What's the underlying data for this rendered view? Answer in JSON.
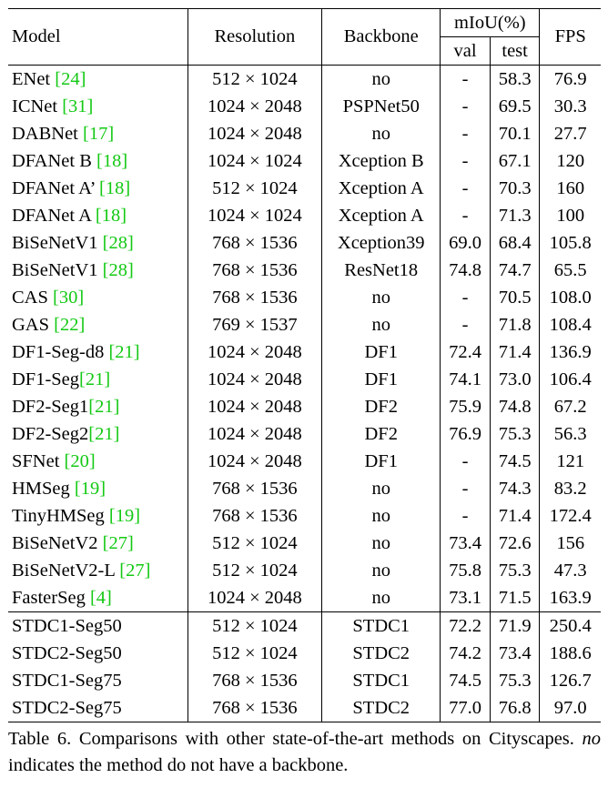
{
  "headers": {
    "model": "Model",
    "resolution": "Resolution",
    "backbone": "Backbone",
    "miou": "mIoU(%)",
    "val": "val",
    "test": "test",
    "fps": "FPS"
  },
  "rows_group1": [
    {
      "name": "ENet ",
      "ref": "[24]",
      "res": "512 × 1024",
      "backbone": "no",
      "val": "-",
      "test": "58.3",
      "fps": "76.9"
    },
    {
      "name": "ICNet ",
      "ref": "[31]",
      "res": "1024 × 2048",
      "backbone": "PSPNet50",
      "val": "-",
      "test": "69.5",
      "fps": "30.3"
    },
    {
      "name": "DABNet ",
      "ref": "[17]",
      "res": "1024 × 2048",
      "backbone": "no",
      "val": "-",
      "test": "70.1",
      "fps": "27.7"
    },
    {
      "name": "DFANet B ",
      "ref": "[18]",
      "res": "1024 × 1024",
      "backbone": "Xception B",
      "val": "-",
      "test": "67.1",
      "fps": "120"
    },
    {
      "name": "DFANet A’ ",
      "ref": "[18]",
      "res": "512 × 1024",
      "backbone": "Xception A",
      "val": "-",
      "test": "70.3",
      "fps": "160"
    },
    {
      "name": "DFANet A ",
      "ref": "[18]",
      "res": "1024 × 1024",
      "backbone": "Xception A",
      "val": "-",
      "test": "71.3",
      "fps": "100"
    },
    {
      "name": "BiSeNetV1 ",
      "ref": "[28]",
      "res": "768 × 1536",
      "backbone": "Xception39",
      "val": "69.0",
      "test": "68.4",
      "fps": "105.8"
    },
    {
      "name": "BiSeNetV1 ",
      "ref": "[28]",
      "res": "768 × 1536",
      "backbone": "ResNet18",
      "val": "74.8",
      "test": "74.7",
      "fps": "65.5"
    },
    {
      "name": "CAS ",
      "ref": "[30]",
      "res": "768 × 1536",
      "backbone": "no",
      "val": "-",
      "test": "70.5",
      "fps": "108.0"
    },
    {
      "name": "GAS ",
      "ref": "[22]",
      "res": "769 × 1537",
      "backbone": "no",
      "val": "-",
      "test": "71.8",
      "fps": "108.4"
    },
    {
      "name": "DF1-Seg-d8 ",
      "ref": "[21]",
      "res": "1024 × 2048",
      "backbone": "DF1",
      "val": "72.4",
      "test": "71.4",
      "fps": "136.9"
    },
    {
      "name": "DF1-Seg",
      "ref": "[21]",
      "res": "1024 × 2048",
      "backbone": "DF1",
      "val": "74.1",
      "test": "73.0",
      "fps": "106.4"
    },
    {
      "name": "DF2-Seg1",
      "ref": "[21]",
      "res": "1024 × 2048",
      "backbone": "DF2",
      "val": "75.9",
      "test": "74.8",
      "fps": "67.2"
    },
    {
      "name": "DF2-Seg2",
      "ref": "[21]",
      "res": "1024 × 2048",
      "backbone": "DF2",
      "val": "76.9",
      "test": "75.3",
      "fps": "56.3"
    },
    {
      "name": "SFNet ",
      "ref": "[20]",
      "res": "1024 × 2048",
      "backbone": "DF1",
      "val": "-",
      "test": "74.5",
      "fps": "121"
    },
    {
      "name": "HMSeg ",
      "ref": "[19]",
      "res": "768 × 1536",
      "backbone": "no",
      "val": "-",
      "test": "74.3",
      "fps": "83.2"
    },
    {
      "name": "TinyHMSeg ",
      "ref": "[19]",
      "res": "768 × 1536",
      "backbone": "no",
      "val": "-",
      "test": "71.4",
      "fps": "172.4"
    },
    {
      "name": "BiSeNetV2 ",
      "ref": "[27]",
      "res": "512 × 1024",
      "backbone": "no",
      "val": "73.4",
      "test": "72.6",
      "fps": "156"
    },
    {
      "name": "BiSeNetV2-L ",
      "ref": "[27]",
      "res": "512 × 1024",
      "backbone": "no",
      "val": "75.8",
      "test": "75.3",
      "fps": "47.3"
    },
    {
      "name": "FasterSeg ",
      "ref": "[4]",
      "res": "1024 × 2048",
      "backbone": "no",
      "val": "73.1",
      "test": "71.5",
      "fps": "163.9"
    }
  ],
  "rows_group2": [
    {
      "name": "STDC1-Seg50",
      "ref": "",
      "res": "512 × 1024",
      "backbone": "STDC1",
      "val": "72.2",
      "test": "71.9",
      "fps": "250.4",
      "bold": [
        "fps"
      ]
    },
    {
      "name": "STDC2-Seg50",
      "ref": "",
      "res": "512 × 1024",
      "backbone": "STDC2",
      "val": "74.2",
      "test": "73.4",
      "fps": "188.6",
      "bold": []
    },
    {
      "name": "STDC1-Seg75",
      "ref": "",
      "res": "768 × 1536",
      "backbone": "STDC1",
      "val": "74.5",
      "test": "75.3",
      "fps": "126.7",
      "bold": []
    },
    {
      "name": "STDC2-Seg75",
      "ref": "",
      "res": "768 × 1536",
      "backbone": "STDC2",
      "val": "77.0",
      "test": "76.8",
      "fps": "97.0",
      "bold": [
        "val",
        "test"
      ]
    }
  ],
  "caption": {
    "label": "Table 6.",
    "text_before": " Comparisons with other state-of-the-art methods on Cityscapes. ",
    "italic": "no",
    "text_after": " indicates the method do not have a backbone."
  },
  "colors": {
    "reference": "#13c913",
    "text": "#000000"
  }
}
